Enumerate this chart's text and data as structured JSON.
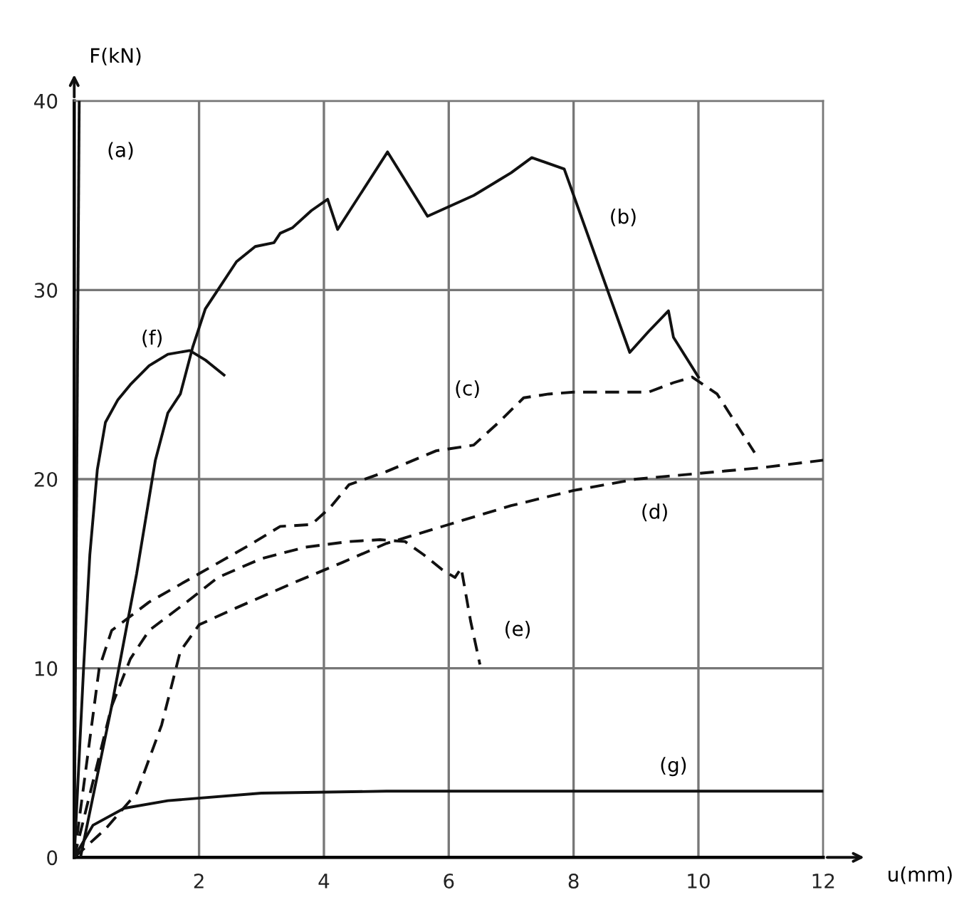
{
  "chart_data": {
    "type": "line",
    "xlabel": "u(mm)",
    "ylabel": "F(kN)",
    "xlim": [
      0,
      12
    ],
    "ylim": [
      0,
      40
    ],
    "xticks": [
      {
        "value": 0,
        "label": null
      },
      2,
      4,
      6,
      8,
      10,
      12
    ],
    "yticks": [
      0,
      10,
      20,
      30,
      40
    ],
    "grid": true,
    "marker": "none",
    "series": [
      {
        "color": "#111111",
        "line_style": "solid",
        "x": [
          0,
          0.08
        ],
        "values": [
          0,
          40
        ]
      },
      {
        "color": "#111111",
        "line_style": "solid",
        "x": [
          0.1,
          0.6,
          1.0,
          1.3,
          1.5,
          1.7,
          1.9,
          2.1,
          2.3,
          2.6,
          2.9,
          3.2,
          3.3,
          3.5,
          3.8,
          4.06,
          4.22,
          5.02,
          5.66,
          6.4,
          6.8,
          7.0,
          7.33,
          7.85,
          8.9,
          9.2,
          9.52,
          9.6,
          10.0
        ],
        "values": [
          0,
          8,
          15,
          21,
          23.5,
          24.5,
          27,
          29,
          30,
          31.5,
          32.3,
          32.5,
          33,
          33.3,
          34.2,
          34.8,
          33.2,
          37.3,
          33.9,
          35,
          35.8,
          36.2,
          37.0,
          36.4,
          26.7,
          27.8,
          28.9,
          27.5,
          25.4
        ]
      },
      {
        "color": "#111111",
        "line_style": "dashed",
        "x": [
          0,
          0.2,
          0.4,
          0.6,
          1.2,
          2,
          2.8,
          3.3,
          3.8,
          4.1,
          4.4,
          5,
          5.8,
          6.4,
          6.8,
          7.2,
          7.6,
          8,
          9.2,
          9.6,
          9.9,
          10.3,
          10.9
        ],
        "values": [
          0,
          5,
          10,
          12,
          13.5,
          15,
          16.5,
          17.5,
          17.6,
          18.5,
          19.7,
          20.4,
          21.5,
          21.8,
          23,
          24.3,
          24.5,
          24.6,
          24.6,
          25.1,
          25.4,
          24.5,
          21.4
        ]
      },
      {
        "color": "#111111",
        "line_style": "dashed",
        "x": [
          0,
          0.5,
          1.0,
          1.4,
          1.7,
          2,
          2.6,
          3.5,
          4.3,
          5,
          6,
          7,
          8,
          9,
          10,
          11,
          12
        ],
        "values": [
          0,
          1.5,
          3.4,
          7,
          10.9,
          12.3,
          13.2,
          14.5,
          15.6,
          16.6,
          17.6,
          18.6,
          19.4,
          20,
          20.3,
          20.6,
          21
        ]
      },
      {
        "color": "#111111",
        "line_style": "dashed",
        "x": [
          0,
          0.3,
          0.6,
          0.9,
          1.2,
          1.8,
          2.3,
          3,
          3.7,
          4.4,
          4.9,
          5.3,
          5.6,
          5.9,
          6.1,
          6.2,
          6.35,
          6.5
        ],
        "values": [
          0,
          4,
          8,
          10.5,
          12,
          13.5,
          14.8,
          15.8,
          16.4,
          16.7,
          16.8,
          16.7,
          16,
          15.2,
          14.8,
          15.3,
          12.5,
          10.2
        ]
      },
      {
        "color": "#111111",
        "line_style": "solid",
        "x": [
          0,
          0.15,
          0.25,
          0.37,
          0.5,
          0.7,
          0.9,
          1.2,
          1.5,
          1.85,
          2.1,
          2.4
        ],
        "values": [
          0,
          10,
          16,
          20.5,
          23,
          24.2,
          25,
          26,
          26.6,
          26.8,
          26.3,
          25.5
        ]
      },
      {
        "color": "#111111",
        "line_style": "solid",
        "x": [
          0,
          0.3,
          0.8,
          1.5,
          3,
          5,
          12
        ],
        "values": [
          0,
          1.7,
          2.6,
          3.0,
          3.4,
          3.5,
          3.5
        ]
      }
    ],
    "annotations": [
      "(a)",
      "(b)",
      "(c)",
      "(d)",
      "(e)",
      "(f)",
      "(g)"
    ]
  }
}
